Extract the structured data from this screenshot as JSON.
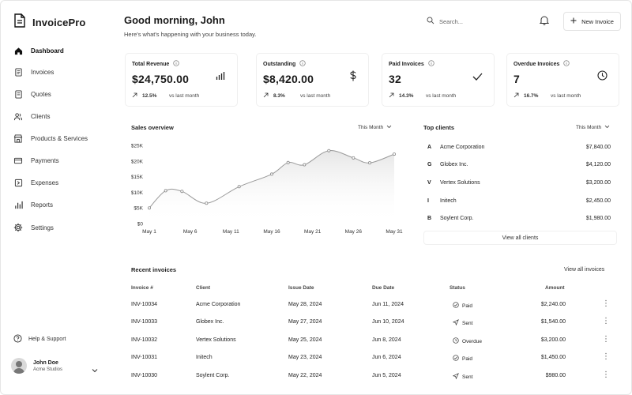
{
  "app": {
    "name": "InvoicePro"
  },
  "nav": [
    {
      "label": "Dashboard",
      "icon": "home-icon",
      "active": true
    },
    {
      "label": "Invoices",
      "icon": "invoice-icon"
    },
    {
      "label": "Quotes",
      "icon": "quote-icon"
    },
    {
      "label": "Clients",
      "icon": "users-icon"
    },
    {
      "label": "Products & Services",
      "icon": "store-icon"
    },
    {
      "label": "Payments",
      "icon": "card-icon"
    },
    {
      "label": "Expenses",
      "icon": "expense-icon"
    },
    {
      "label": "Reports",
      "icon": "bar-chart-icon"
    },
    {
      "label": "Settings",
      "icon": "gear-icon"
    }
  ],
  "help": {
    "label": "Help & Support"
  },
  "user": {
    "name": "John Doe",
    "company": "Acme Studios"
  },
  "header": {
    "greeting": "Good morning, John",
    "subtitle": "Here's what's happening with your business today.",
    "search_placeholder": "Search...",
    "new_invoice": "New Invoice"
  },
  "stats": [
    {
      "label": "Total Revenue",
      "value": "$24,750.00",
      "pct": "12.5%",
      "note": "vs last month",
      "icon": "bar-chart-icon"
    },
    {
      "label": "Outstanding",
      "value": "$8,420.00",
      "pct": "8.3%",
      "note": "vs last month",
      "icon": "dollar-icon"
    },
    {
      "label": "Paid Invoices",
      "value": "32",
      "pct": "14.3%",
      "note": "vs last month",
      "icon": "check-icon"
    },
    {
      "label": "Overdue Invoices",
      "value": "7",
      "pct": "16.7%",
      "note": "vs last month",
      "icon": "clock-icon"
    }
  ],
  "sales": {
    "title": "Sales overview",
    "period": "This Month"
  },
  "chart_data": {
    "type": "area",
    "title": "Sales overview",
    "x": [
      "May 1",
      "May 3",
      "May 5",
      "May 8",
      "May 12",
      "May 16",
      "May 18",
      "May 20",
      "May 23",
      "May 26",
      "May 28",
      "May 31"
    ],
    "xticks": [
      "May 1",
      "May 6",
      "May 11",
      "May 16",
      "May 21",
      "May 26",
      "May 31"
    ],
    "yticks": [
      "$0",
      "$5K",
      "$10K",
      "$15K",
      "$20K",
      "$25K"
    ],
    "values": [
      5000,
      10500,
      10300,
      6500,
      11800,
      15800,
      19500,
      18800,
      23300,
      21000,
      19400,
      22200
    ],
    "ylim": [
      0,
      25000
    ],
    "grid": false
  },
  "top_clients": {
    "title": "Top clients",
    "period": "This Month",
    "items": [
      {
        "logo": "A",
        "name": "Acme Corporation",
        "amount": "$7,840.00"
      },
      {
        "logo": "G",
        "name": "Globex Inc.",
        "amount": "$4,120.00"
      },
      {
        "logo": "V",
        "name": "Vertex Solutions",
        "amount": "$3,200.00"
      },
      {
        "logo": "I",
        "name": "Initech",
        "amount": "$2,450.00"
      },
      {
        "logo": "B",
        "name": "Soylent Corp.",
        "amount": "$1,980.00"
      }
    ],
    "view_all": "View all clients"
  },
  "invoices": {
    "title": "Recent invoices",
    "view_all": "View all invoices",
    "columns": [
      "Invoice #",
      "Client",
      "Issue Date",
      "Due Date",
      "Status",
      "Amount"
    ],
    "rows": [
      {
        "id": "INV-10034",
        "client": "Acme Corporation",
        "issue": "May 28, 2024",
        "due": "Jun 11, 2024",
        "status": "Paid",
        "amount": "$2,240.00"
      },
      {
        "id": "INV-10033",
        "client": "Globex Inc.",
        "issue": "May 27, 2024",
        "due": "Jun 10, 2024",
        "status": "Sent",
        "amount": "$1,540.00"
      },
      {
        "id": "INV-10032",
        "client": "Vertex Solutions",
        "issue": "May 25, 2024",
        "due": "Jun 8, 2024",
        "status": "Overdue",
        "amount": "$3,200.00"
      },
      {
        "id": "INV-10031",
        "client": "Initech",
        "issue": "May 23, 2024",
        "due": "Jun 6, 2024",
        "status": "Paid",
        "amount": "$1,450.00"
      },
      {
        "id": "INV-10030",
        "client": "Soylent Corp.",
        "issue": "May 22, 2024",
        "due": "Jun 5, 2024",
        "status": "Sent",
        "amount": "$980.00"
      }
    ]
  }
}
